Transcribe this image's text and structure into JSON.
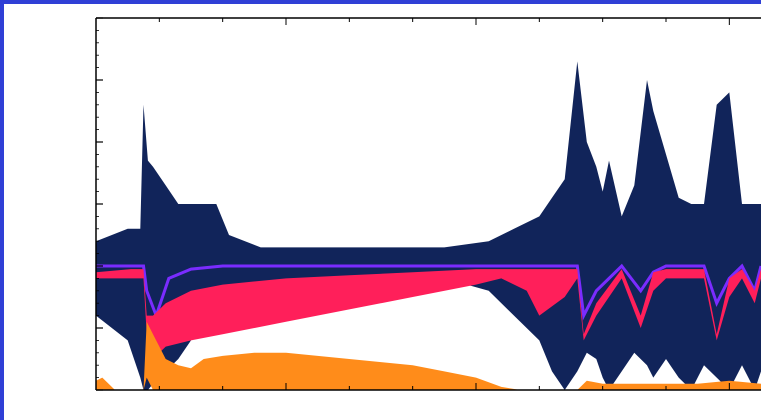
{
  "chart_data": {
    "type": "area",
    "title": "",
    "xlabel": "",
    "ylabel": "",
    "ylim": [
      0,
      6
    ],
    "xlim": [
      0,
      1050
    ],
    "yticks": [
      0,
      1,
      2,
      3,
      4,
      5,
      6
    ],
    "xticks": [
      300,
      600,
      1000
    ],
    "grid": false,
    "colors": {
      "upper_band": "#11245a",
      "purple_line": "#7a2cff",
      "red_band": "#ff1f5a",
      "orange_band": "#ff8c1a",
      "axis": "#000000"
    },
    "series": [
      {
        "x": [
          0,
          50,
          70,
          75,
          82,
          90,
          110,
          130,
          150,
          170,
          190,
          210,
          260,
          350,
          450,
          550,
          620,
          660,
          700,
          720,
          740,
          760,
          775,
          790,
          800,
          810,
          830,
          850,
          870,
          880,
          900,
          920,
          940,
          960,
          980,
          1000,
          1020,
          1040,
          1050
        ],
        "y_top": [
          2.4,
          2.6,
          2.6,
          4.6,
          3.7,
          3.6,
          3.3,
          3.0,
          3.0,
          3.0,
          3.0,
          2.5,
          2.3,
          2.3,
          2.3,
          2.3,
          2.4,
          2.6,
          2.8,
          3.1,
          3.4,
          5.3,
          4.0,
          3.6,
          3.2,
          3.7,
          2.8,
          3.3,
          5.0,
          4.5,
          3.8,
          3.1,
          3.0,
          3.0,
          4.6,
          4.8,
          3.0,
          3.0,
          3.0
        ],
        "y_bottom": [
          1.2,
          0.8,
          0.2,
          0.0,
          0.0,
          0.1,
          0.3,
          0.5,
          0.8,
          1.1,
          1.4,
          1.6,
          1.7,
          1.7,
          1.8,
          1.8,
          1.6,
          1.2,
          0.8,
          0.3,
          0.0,
          0.3,
          0.6,
          0.5,
          0.2,
          0.0,
          0.3,
          0.6,
          0.4,
          0.2,
          0.5,
          0.2,
          0.0,
          0.4,
          0.2,
          0.0,
          0.4,
          0.0,
          0.3
        ]
      },
      {
        "x": [
          0,
          55,
          75,
          80,
          95,
          115,
          150,
          200,
          300,
          400,
          500,
          600,
          700,
          760,
          770,
          790,
          830,
          860,
          880,
          900,
          960,
          980,
          1000,
          1020,
          1040,
          1050
        ],
        "y": [
          2.0,
          2.0,
          2.0,
          1.6,
          1.2,
          1.8,
          1.95,
          2.0,
          2.0,
          2.0,
          2.0,
          2.0,
          2.0,
          2.0,
          1.2,
          1.6,
          2.0,
          1.6,
          1.9,
          2.0,
          2.0,
          1.4,
          1.8,
          2.0,
          1.6,
          2.0
        ]
      },
      {
        "x": [
          0,
          55,
          75,
          80,
          90,
          110,
          150,
          200,
          300,
          400,
          500,
          600,
          640,
          680,
          700,
          740,
          760,
          770,
          790,
          830,
          860,
          880,
          900,
          960,
          980,
          1000,
          1020,
          1040,
          1050
        ],
        "y_top": [
          1.9,
          1.95,
          1.95,
          1.2,
          1.2,
          1.4,
          1.6,
          1.7,
          1.8,
          1.85,
          1.9,
          1.95,
          1.95,
          1.95,
          1.95,
          1.95,
          1.95,
          0.9,
          1.4,
          1.95,
          1.2,
          1.9,
          1.95,
          1.95,
          0.9,
          1.8,
          1.95,
          1.6,
          1.95
        ],
        "y_bottom": [
          1.8,
          1.8,
          1.8,
          0.9,
          0.5,
          0.7,
          0.8,
          0.9,
          1.1,
          1.3,
          1.5,
          1.7,
          1.8,
          1.6,
          1.2,
          1.5,
          1.8,
          0.8,
          1.2,
          1.8,
          1.0,
          1.6,
          1.8,
          1.8,
          0.8,
          1.5,
          1.8,
          1.4,
          1.8
        ]
      },
      {
        "x": [
          0,
          10,
          30,
          75,
          80,
          90,
          110,
          130,
          150,
          170,
          200,
          250,
          300,
          350,
          400,
          450,
          500,
          550,
          600,
          640,
          670,
          700,
          760,
          775,
          800,
          850,
          900,
          950,
          1000,
          1050
        ],
        "y_top": [
          0.15,
          0.2,
          0.0,
          0.0,
          1.1,
          0.9,
          0.5,
          0.4,
          0.35,
          0.5,
          0.55,
          0.6,
          0.6,
          0.55,
          0.5,
          0.45,
          0.4,
          0.3,
          0.2,
          0.05,
          0.0,
          0.0,
          0.0,
          0.15,
          0.1,
          0.1,
          0.1,
          0.1,
          0.15,
          0.1
        ],
        "y_bottom": [
          0.0,
          0.0,
          0.0,
          0.0,
          0.2,
          0.0,
          0.0,
          0.0,
          0.0,
          0.0,
          0.0,
          0.0,
          0.0,
          0.0,
          0.0,
          0.0,
          0.0,
          0.0,
          0.0,
          0.0,
          0.0,
          0.0,
          0.0,
          0.0,
          0.0,
          0.0,
          0.0,
          0.0,
          0.0,
          0.0
        ]
      }
    ]
  }
}
